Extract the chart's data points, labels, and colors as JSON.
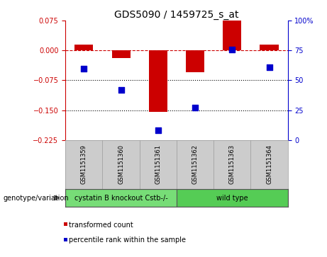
{
  "title": "GDS5090 / 1459725_s_at",
  "samples": [
    "GSM1151359",
    "GSM1151360",
    "GSM1151361",
    "GSM1151362",
    "GSM1151363",
    "GSM1151364"
  ],
  "red_values": [
    0.015,
    -0.02,
    -0.155,
    -0.055,
    0.075,
    0.015
  ],
  "blue_values": [
    60,
    42,
    8,
    27,
    76,
    61
  ],
  "groups": [
    {
      "label": "cystatin B knockout Cstb-/-",
      "samples": [
        0,
        1,
        2
      ],
      "color": "#77DD77"
    },
    {
      "label": "wild type",
      "samples": [
        3,
        4,
        5
      ],
      "color": "#55CC55"
    }
  ],
  "ylim_left": [
    -0.225,
    0.075
  ],
  "ylim_right": [
    0,
    100
  ],
  "yticks_left": [
    0.075,
    0,
    -0.075,
    -0.15,
    -0.225
  ],
  "yticks_right": [
    100,
    75,
    50,
    25,
    0
  ],
  "left_axis_color": "#CC0000",
  "right_axis_color": "#0000CC",
  "bar_color": "#CC0000",
  "dot_color": "#0000CC",
  "legend_items": [
    "transformed count",
    "percentile rank within the sample"
  ],
  "genotype_label": "genotype/variation",
  "background_color": "#ffffff",
  "sample_box_color": "#cccccc",
  "bar_width": 0.5,
  "dot_size": 30,
  "title_fontsize": 10,
  "tick_fontsize": 7,
  "sample_fontsize": 6,
  "group_fontsize": 7,
  "legend_fontsize": 7,
  "genotype_fontsize": 7
}
